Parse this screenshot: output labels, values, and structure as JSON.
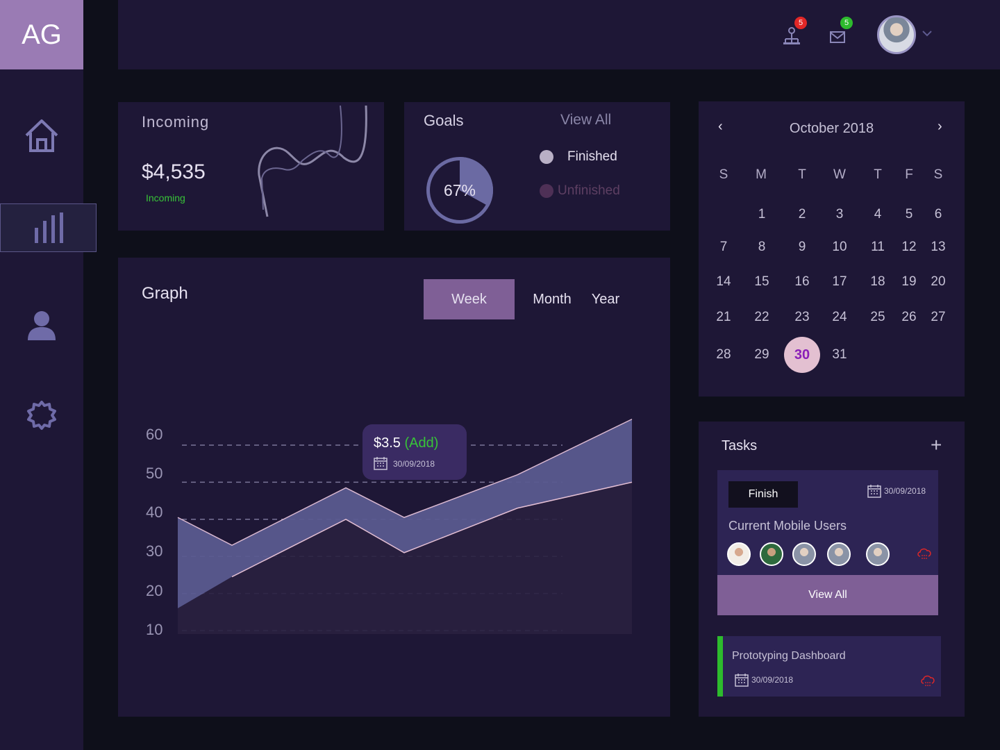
{
  "logo": "AG",
  "colors": {
    "accent": "#9a7bb4",
    "panel": "#1e1736",
    "background": "#0e0f1a",
    "positive": "#38c438",
    "badge_red": "#e12727",
    "badge_green": "#2dbb2d"
  },
  "sidebar": {
    "items": [
      {
        "name": "home",
        "icon": "home-icon"
      },
      {
        "name": "analytics",
        "icon": "bar-chart-icon",
        "active": true
      },
      {
        "name": "profile",
        "icon": "user-icon"
      },
      {
        "name": "settings",
        "icon": "gear-icon"
      }
    ]
  },
  "header": {
    "notifications_count": "5",
    "messages_count": "5"
  },
  "incoming": {
    "title": "Incoming",
    "value": "$4,535",
    "sublabel": "Incoming"
  },
  "goals": {
    "title": "Goals",
    "view_all": "View All",
    "percent_label": "67%",
    "percent": 67,
    "legend": [
      {
        "label": "Finished",
        "color": "#b9b0c6"
      },
      {
        "label": "Unfinished",
        "color": "#4e3056"
      }
    ]
  },
  "graph": {
    "title": "Graph",
    "ranges": [
      "Week",
      "Month",
      "Year"
    ],
    "active_range": "Week",
    "tooltip": {
      "value": "$3.5",
      "action": "(Add)",
      "date": "30/09/2018"
    }
  },
  "chart_data": {
    "type": "area",
    "y_ticks": [
      60,
      50,
      40,
      30,
      20,
      10
    ],
    "ylim": [
      10,
      60
    ],
    "x": [
      0,
      1,
      2,
      3,
      4,
      5
    ],
    "series": [
      {
        "values": [
          40.5,
          33,
          48.5,
          40.5,
          52,
          67
        ]
      },
      {
        "values": [
          16,
          24.5,
          40,
          31,
          43,
          50
        ]
      }
    ]
  },
  "calendar": {
    "month": "October 2018",
    "weekdays": [
      "S",
      "M",
      "T",
      "W",
      "T",
      "F",
      "S"
    ],
    "weeks": [
      [
        "",
        "1",
        "2",
        "3",
        "4",
        "5",
        "6"
      ],
      [
        "7",
        "8",
        "9",
        "10",
        "11",
        "12",
        "13"
      ],
      [
        "14",
        "15",
        "16",
        "17",
        "18",
        "19",
        "20"
      ],
      [
        "21",
        "22",
        "23",
        "24",
        "25",
        "26",
        "27"
      ],
      [
        "28",
        "29",
        "30",
        "31",
        "",
        "",
        ""
      ]
    ],
    "today": "30"
  },
  "tasks": {
    "title": "Tasks",
    "items": [
      {
        "status": "Finish",
        "date": "30/09/2018",
        "name": "Current Mobile Users",
        "action": "View All"
      },
      {
        "name": "Prototyping Dashboard",
        "date": "30/09/2018"
      }
    ]
  }
}
